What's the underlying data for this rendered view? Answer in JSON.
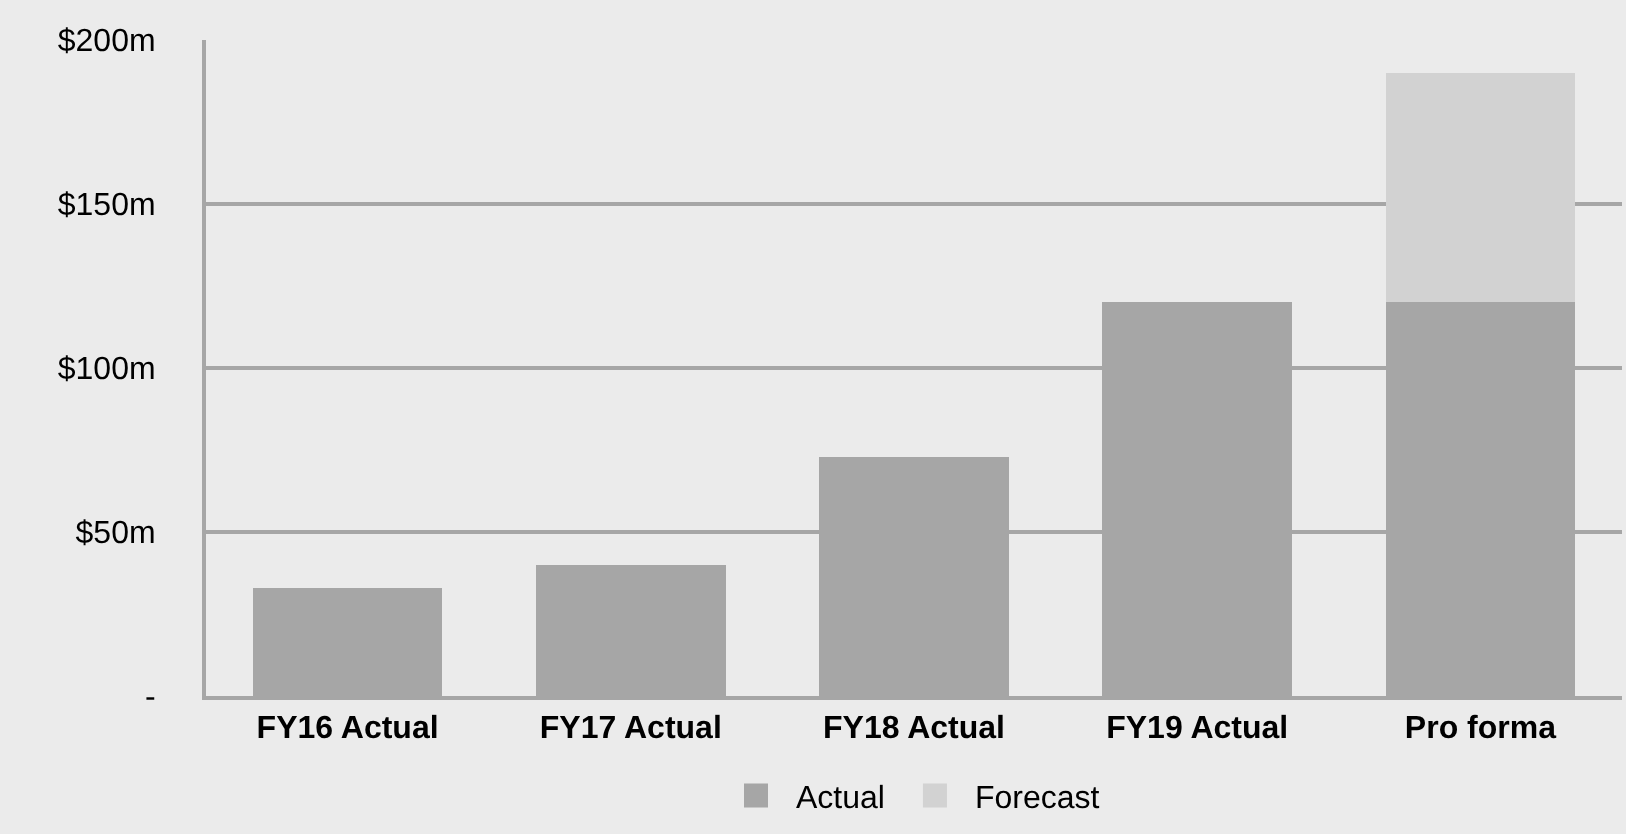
{
  "chart_data": {
    "type": "bar",
    "stacked": true,
    "categories": [
      "FY16 Actual",
      "FY17 Actual",
      "FY18 Actual",
      "FY19 Actual",
      "Pro forma"
    ],
    "series": [
      {
        "name": "Actual",
        "color": "#a6a6a6",
        "values": [
          33,
          40,
          73,
          120,
          120
        ]
      },
      {
        "name": "Forecast",
        "color": "#d2d2d2",
        "values": [
          null,
          null,
          null,
          null,
          70
        ]
      }
    ],
    "ylim": [
      0,
      200
    ],
    "yticks": [
      {
        "value": 0,
        "label": "-"
      },
      {
        "value": 50,
        "label": "$50m"
      },
      {
        "value": 100,
        "label": "$100m"
      },
      {
        "value": 150,
        "label": "$150m"
      },
      {
        "value": 200,
        "label": "$200m"
      }
    ],
    "grid": "y",
    "legend": "bottom"
  }
}
